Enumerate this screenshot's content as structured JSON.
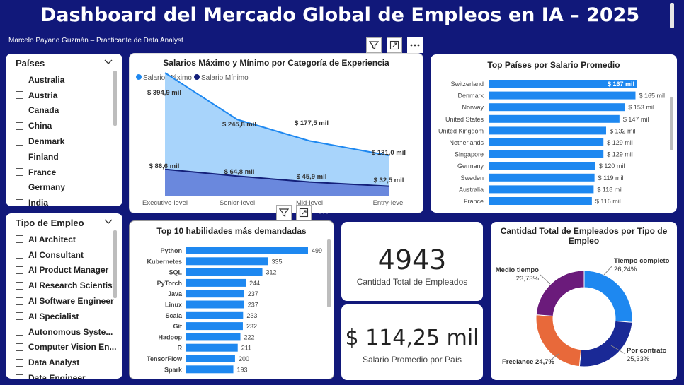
{
  "header": {
    "title": "Dashboard del Mercado Global de Empleos en IA – 2025",
    "author": "Marcelo Payano Guzmán – Practicante de Data Analyst"
  },
  "slicer_countries": {
    "title": "Países",
    "items": [
      "Australia",
      "Austria",
      "Canada",
      "China",
      "Denmark",
      "Finland",
      "France",
      "Germany",
      "India"
    ]
  },
  "slicer_employment": {
    "title": "Tipo de Empleo",
    "items": [
      "AI Architect",
      "AI Consultant",
      "AI Product Manager",
      "AI Research Scientist",
      "AI Software Engineer",
      "AI Specialist",
      "Autonomous Syste...",
      "Computer Vision En...",
      "Data Analyst",
      "Data Engineer"
    ]
  },
  "icons": [
    "filter-icon",
    "focus-mode-icon",
    "more-options-icon",
    "chevron-down-icon",
    "checkbox-icon"
  ],
  "kpis": {
    "employees_value": "4943",
    "employees_label": "Cantidad Total de Empleados",
    "salary_value": "$ 114,25 mil",
    "salary_label": "Salario Promedio por País"
  },
  "colors": {
    "background": "#11187a",
    "bar": "#1e88f0",
    "area_max": "#a8d4fb",
    "line_max": "#1e88f0",
    "area_min": "#6a88dd",
    "line_min": "#14207a",
    "donut": [
      "#1e88f0",
      "#1a2996",
      "#e8693a",
      "#6b1b7b"
    ]
  },
  "chart_data": [
    {
      "type": "area",
      "title": "Salarios Máximo y Mínimo por Categoría de Experiencia",
      "categories": [
        "Executive-level",
        "Senior-level",
        "Mid-level",
        "Entry-level"
      ],
      "series": [
        {
          "name": "Salario Máximo",
          "values": [
            394.9,
            245.8,
            177.5,
            131.0
          ],
          "labels": [
            "$ 394,9 mil",
            "$ 245,8 mil",
            "$ 177,5 mil",
            "$ 131,0 mil"
          ]
        },
        {
          "name": "Salario Mínimo",
          "values": [
            86.6,
            64.8,
            45.9,
            32.5
          ],
          "labels": [
            "$ 86,6 mil",
            "$ 64,8 mil",
            "$ 45,9 mil",
            "$ 32,5 mil"
          ]
        }
      ],
      "legend": "top-left",
      "ylim": [
        0,
        420
      ]
    },
    {
      "type": "bar",
      "orientation": "horizontal",
      "title": "Top Países por Salario Promedio",
      "categories": [
        "Switzerland",
        "Denmark",
        "Norway",
        "United States",
        "United Kingdom",
        "Netherlands",
        "Singapore",
        "Germany",
        "Sweden",
        "Australia",
        "France"
      ],
      "values": [
        167,
        165,
        153,
        147,
        132,
        129,
        129,
        120,
        119,
        118,
        116
      ],
      "labels": [
        "$ 167 mil",
        "$ 165 mil",
        "$ 153 mil",
        "$ 147 mil",
        "$ 132 mil",
        "$ 129 mil",
        "$ 129 mil",
        "$ 120 mil",
        "$ 119 mil",
        "$ 118 mil",
        "$ 116 mil"
      ]
    },
    {
      "type": "bar",
      "orientation": "horizontal",
      "title": "Top 10 habilidades más demandadas",
      "categories": [
        "Python",
        "Kubernetes",
        "SQL",
        "PyTorch",
        "Java",
        "Linux",
        "Scala",
        "Git",
        "Hadoop",
        "R",
        "TensorFlow",
        "Spark"
      ],
      "values": [
        499,
        335,
        312,
        244,
        237,
        237,
        233,
        232,
        222,
        211,
        200,
        193
      ]
    },
    {
      "type": "pie",
      "variant": "donut",
      "title": "Cantidad Total de Empleados por Tipo de Empleo",
      "categories": [
        "Tiempo completo",
        "Por contrato",
        "Freelance",
        "Medio tiempo"
      ],
      "values": [
        26.24,
        25.33,
        24.7,
        23.73
      ],
      "labels": [
        "26,24%",
        "25,33%",
        "24,7%",
        "23,73%"
      ]
    }
  ]
}
